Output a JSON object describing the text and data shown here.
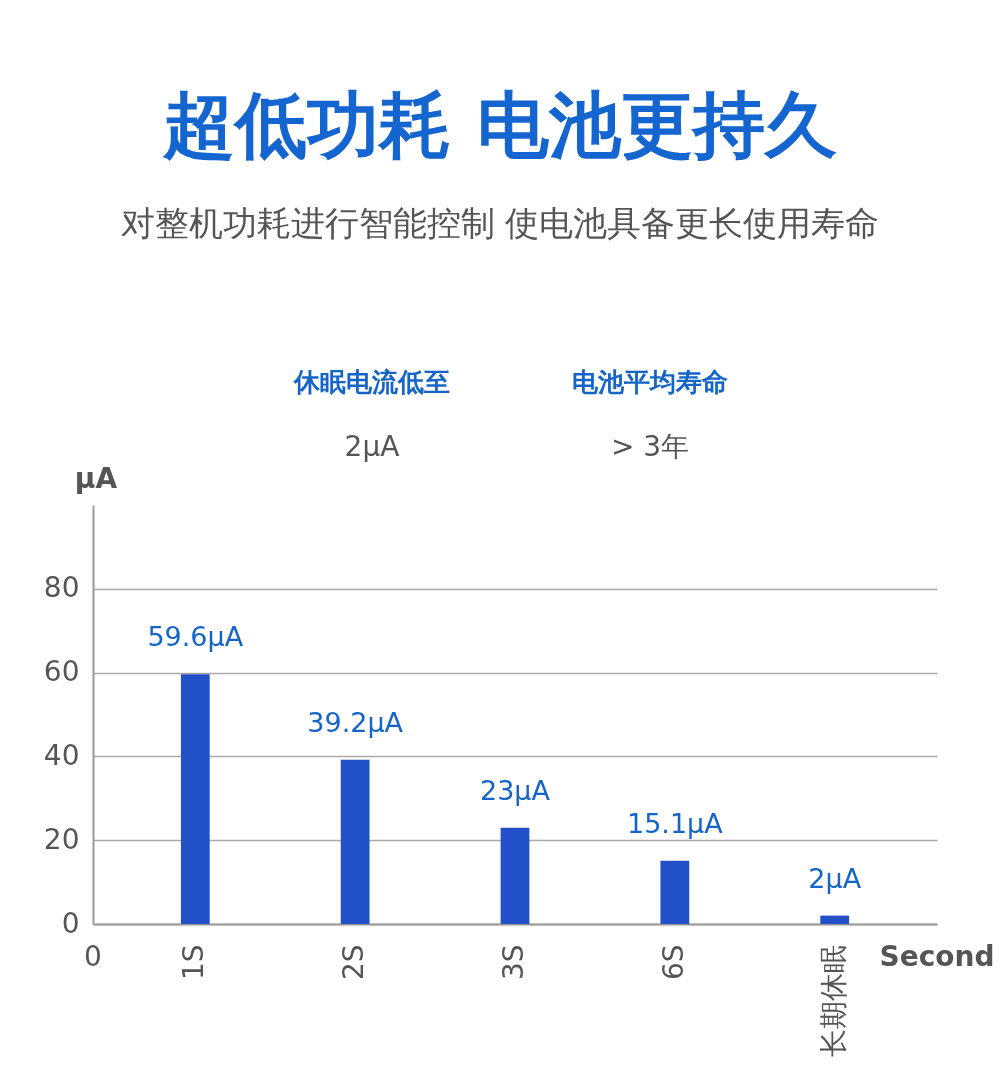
{
  "chart_data": {
    "type": "bar",
    "title": "超低功耗 电池更持久",
    "subtitle": "对整机功耗进行智能控制 使电池具备更长使用寿命",
    "categories": [
      "1S",
      "2S",
      "3S",
      "6S",
      "长期休眠"
    ],
    "values": [
      59.6,
      39.2,
      23,
      15.1,
      2
    ],
    "value_labels": [
      "59.6μA",
      "39.2μA",
      "23μA",
      "15.1μA",
      "2μA"
    ],
    "color": "#2150c8",
    "ylabel": "μA",
    "xlabel": "Second",
    "ylim": [
      0,
      100
    ],
    "yticks": [
      0,
      20,
      40,
      60,
      80
    ],
    "grid": "y",
    "annotations": [
      "0",
      "休眠电流低至",
      "2μA",
      "电池平均寿命",
      "> 3年"
    ]
  }
}
